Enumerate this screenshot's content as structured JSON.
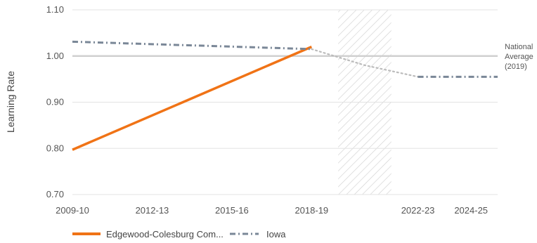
{
  "chart_data": {
    "type": "line",
    "ylabel": "Learning Rate",
    "xlabel": "",
    "ylim": [
      0.7,
      1.1
    ],
    "y_ticks": [
      "0.70",
      "0.80",
      "0.90",
      "1.00",
      "1.10"
    ],
    "x_range": [
      2009,
      2025
    ],
    "x_ticks": [
      {
        "label": "2009-10",
        "x": 2009
      },
      {
        "label": "2012-13",
        "x": 2012
      },
      {
        "label": "2015-16",
        "x": 2015
      },
      {
        "label": "2018-19",
        "x": 2018
      },
      {
        "label": "2022-23",
        "x": 2022
      },
      {
        "label": "2024-25",
        "x": 2024
      }
    ],
    "grid": true,
    "reference_line": {
      "y": 1.0,
      "label_lines": [
        "National",
        "Average",
        "(2019)"
      ]
    },
    "shaded_region": {
      "x_start": 2019,
      "x_end": 2021
    },
    "series": [
      {
        "name": "Edgewood-Colesburg Com...",
        "style": "solid",
        "color": "#F07316",
        "points": [
          [
            2009,
            0.797
          ],
          [
            2018,
            1.02
          ]
        ]
      },
      {
        "name": "Iowa",
        "style": "dashed",
        "color": "#7A8797",
        "points": [
          [
            2009,
            1.031
          ],
          [
            2018,
            1.015
          ]
        ],
        "projection": {
          "style": "dotted",
          "color": "#BBBBBB",
          "points": [
            [
              2018,
              1.015
            ],
            [
              2020,
              0.98
            ],
            [
              2022,
              0.955
            ]
          ]
        },
        "tail": {
          "style": "dashed",
          "points": [
            [
              2022,
              0.955
            ],
            [
              2025,
              0.955
            ]
          ]
        }
      }
    ],
    "legend_position": "bottom"
  }
}
